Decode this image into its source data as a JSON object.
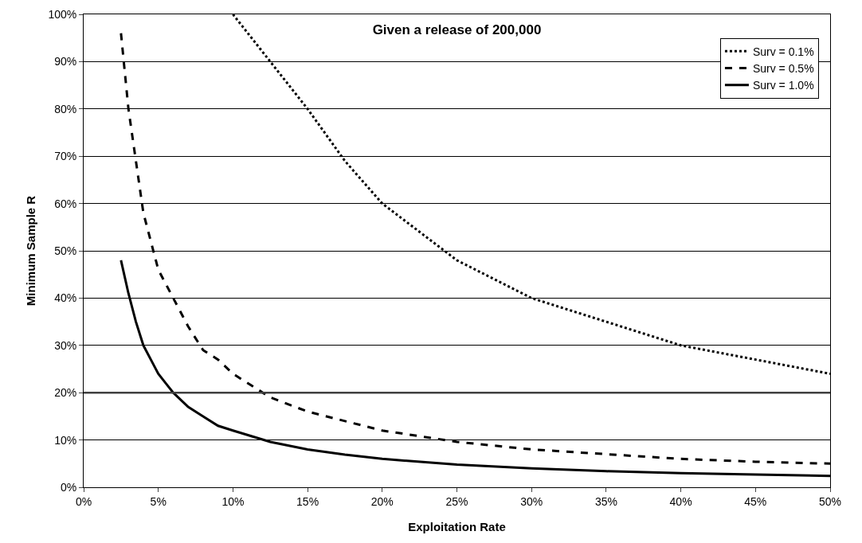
{
  "chart_data": {
    "type": "line",
    "title": "Given a release of 200,000",
    "xlabel": "Exploitation Rate",
    "ylabel": "Minimum Sample R",
    "xlim": [
      0,
      50
    ],
    "xticks": [
      {
        "value": 0,
        "label": "0%"
      },
      {
        "value": 5,
        "label": "5%"
      },
      {
        "value": 10,
        "label": "10%"
      },
      {
        "value": 15,
        "label": "15%"
      },
      {
        "value": 20,
        "label": "20%"
      },
      {
        "value": 25,
        "label": "25%"
      },
      {
        "value": 30,
        "label": "30%"
      },
      {
        "value": 35,
        "label": "35%"
      },
      {
        "value": 40,
        "label": "40%"
      },
      {
        "value": 45,
        "label": "45%"
      },
      {
        "value": 50,
        "label": "50%"
      }
    ],
    "ylim": [
      0,
      100
    ],
    "yticks": [
      {
        "value": 0,
        "label": "0%"
      },
      {
        "value": 10,
        "label": "10%"
      },
      {
        "value": 20,
        "label": "20%"
      },
      {
        "value": 30,
        "label": "30%"
      },
      {
        "value": 40,
        "label": "40%"
      },
      {
        "value": 50,
        "label": "50%"
      },
      {
        "value": 60,
        "label": "60%"
      },
      {
        "value": 70,
        "label": "70%"
      },
      {
        "value": 80,
        "label": "80%"
      },
      {
        "value": 90,
        "label": "90%"
      },
      {
        "value": 100,
        "label": "100%"
      }
    ],
    "grid": "y",
    "legend": "top right",
    "marker": "none",
    "ref_lines": [
      {
        "axis": "y",
        "value": 20,
        "color": "#404040"
      }
    ],
    "series": [
      {
        "name": "Surv = 0.1%",
        "color": "#000000",
        "line_style": "dotted",
        "x": [
          10,
          12.5,
          15,
          17.5,
          20,
          25,
          30,
          35,
          40,
          45,
          50
        ],
        "values": [
          100,
          90,
          80,
          69,
          60,
          48,
          40,
          35,
          30,
          27,
          24
        ]
      },
      {
        "name": "Surv = 0.5%",
        "color": "#000000",
        "line_style": "dashed",
        "x": [
          2.5,
          3,
          3.5,
          4,
          4.5,
          5,
          5.5,
          6,
          7,
          8,
          9,
          10,
          12.5,
          15,
          17.5,
          20,
          25,
          30,
          35,
          40,
          45,
          50
        ],
        "values": [
          96,
          80,
          69,
          58,
          52,
          46,
          43,
          40,
          34,
          29,
          27,
          24,
          19,
          16,
          14,
          12,
          9.6,
          8,
          7,
          6,
          5.4,
          5
        ]
      },
      {
        "name": "Surv = 1.0%",
        "color": "#000000",
        "line_style": "solid",
        "x": [
          2.5,
          3,
          3.5,
          4,
          4.5,
          5,
          5.5,
          6,
          7,
          8,
          9,
          10,
          12.5,
          15,
          17.5,
          20,
          25,
          30,
          35,
          40,
          45,
          50
        ],
        "values": [
          48,
          41,
          35,
          30,
          27,
          24,
          22,
          20,
          17,
          15,
          13,
          12,
          9.6,
          8,
          6.9,
          6,
          4.8,
          4,
          3.4,
          3,
          2.7,
          2.4
        ]
      }
    ]
  }
}
